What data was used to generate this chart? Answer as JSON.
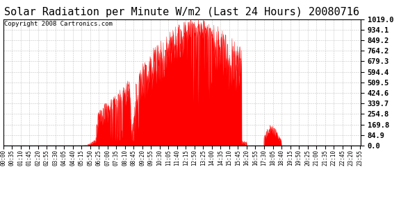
{
  "title": "Solar Radiation per Minute W/m2 (Last 24 Hours) 20080716",
  "copyright_text": "Copyright 2008 Cartronics.com",
  "yticks": [
    0.0,
    84.9,
    169.8,
    254.8,
    339.7,
    424.6,
    509.5,
    594.4,
    679.3,
    764.2,
    849.2,
    934.1,
    1019.0
  ],
  "ymax": 1019.0,
  "ymin": 0.0,
  "bg_color": "#ffffff",
  "fill_color": "#ff0000",
  "line_color": "#ff0000",
  "grid_color": "#aaaaaa",
  "dashed_line_color": "#ff0000",
  "title_fontsize": 11,
  "copyright_fontsize": 6.5,
  "xtick_fontsize": 5.5,
  "ytick_fontsize": 7.5
}
